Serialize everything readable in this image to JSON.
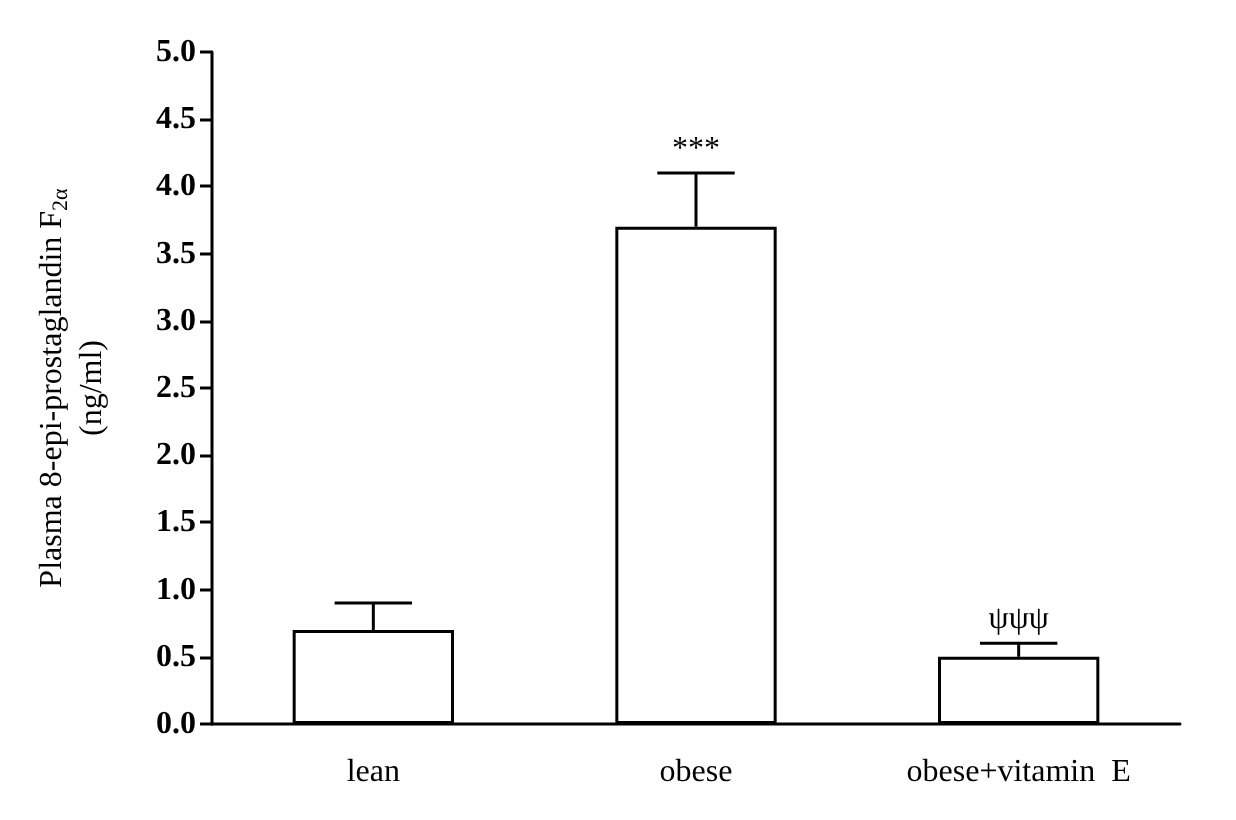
{
  "chart_data": {
    "type": "bar",
    "ylabel": "Plasma 8-epi-prostaglandin F$_{2α}$\n(ng/ml)",
    "categories": [
      "lean",
      "obese",
      "obese+vitamin  E"
    ],
    "series": [
      {
        "color": "#ffffff",
        "values": [
          0.7,
          3.7,
          0.5
        ],
        "errors": [
          [
            0.7,
            0.9
          ],
          [
            3.7,
            4.1
          ],
          [
            0.5,
            0.6
          ]
        ]
      }
    ],
    "ylim": [
      0,
      5
    ],
    "yticks": [
      {
        "value": 0,
        "label": "0.0"
      },
      {
        "value": 0.5,
        "label": "0.5"
      },
      {
        "value": 1,
        "label": "1.0"
      },
      {
        "value": 1.5,
        "label": "1.5"
      },
      {
        "value": 2,
        "label": "2.0"
      },
      {
        "value": 2.5,
        "label": "2.5"
      },
      {
        "value": 3,
        "label": "3.0"
      },
      {
        "value": 3.5,
        "label": "3.5"
      },
      {
        "value": 4,
        "label": "4.0"
      },
      {
        "value": 4.5,
        "label": "4.5"
      },
      {
        "value": 5,
        "label": "5.0"
      }
    ],
    "annotations": [
      {
        "text": "***",
        "x": "obese",
        "y": 4.1
      },
      {
        "text": "ψψψ",
        "x": "obese+vitamin  E",
        "y": 0.6
      }
    ],
    "grid": false
  }
}
